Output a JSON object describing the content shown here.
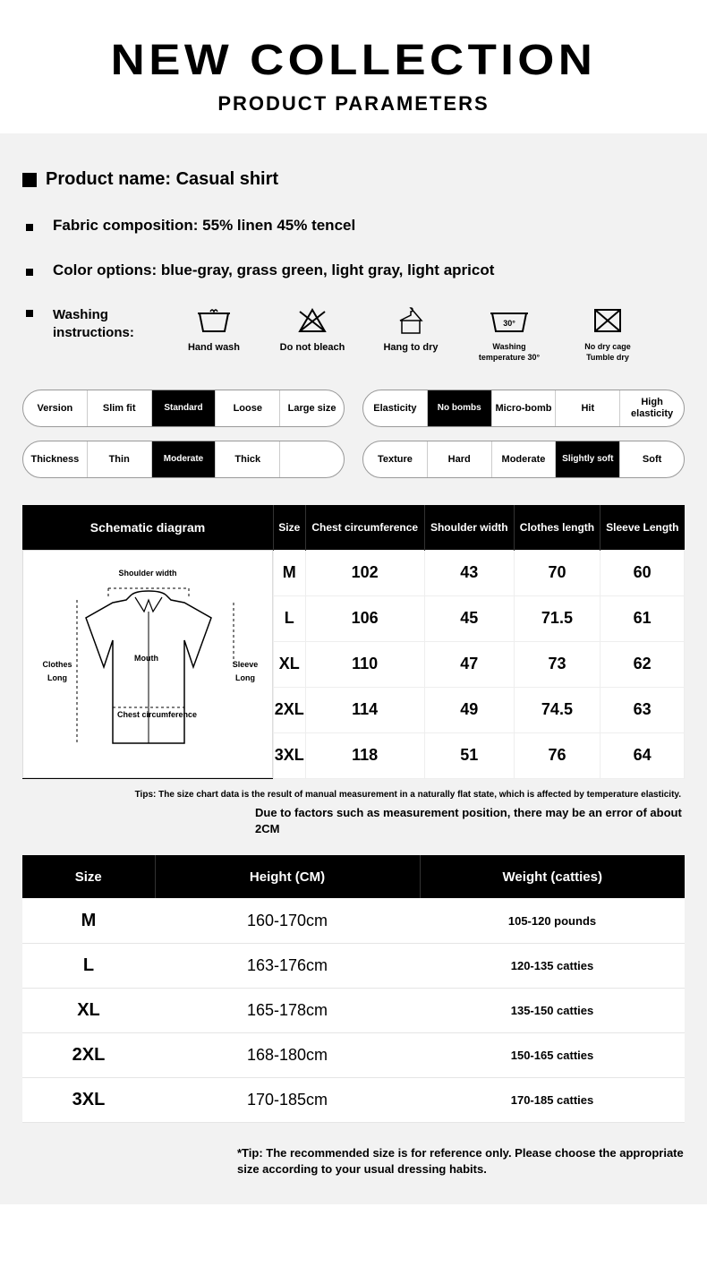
{
  "header": {
    "title": "NEW COLLECTION",
    "subtitle": "PRODUCT PARAMETERS"
  },
  "product": {
    "name_label": "Product name: Casual shirt",
    "fabric": "Fabric composition: 55% linen 45% tencel",
    "colors": "Color options: blue-gray, grass green, light gray, light apricot",
    "wash_label": "Washing instructions:"
  },
  "wash": [
    {
      "label": "Hand wash"
    },
    {
      "label": "Do not bleach"
    },
    {
      "label": "Hang to dry"
    },
    {
      "label": "Washing temperature 30°"
    },
    {
      "label": "No dry cage Tumble dry"
    }
  ],
  "selectors": {
    "row1_left": {
      "label": "Version",
      "options": [
        "Slim fit",
        "Standard",
        "Loose",
        "Large size"
      ],
      "active": 1
    },
    "row1_right": {
      "label": "Elasticity",
      "options": [
        "No bombs",
        "Micro-bomb",
        "Hit",
        "High elasticity"
      ],
      "active": 0
    },
    "row2_left": {
      "label": "Thickness",
      "options": [
        "Thin",
        "Moderate",
        "Thick",
        ""
      ],
      "active": 1
    },
    "row2_right": {
      "label": "Texture",
      "options": [
        "Hard",
        "Moderate",
        "Slightly soft",
        "Soft"
      ],
      "active": 2
    }
  },
  "schematic": {
    "title": "Schematic diagram",
    "labels": {
      "shoulder": "Shoulder width",
      "mouth": "Mouth",
      "chest": "Chest circumference",
      "clothes_long": "Clothes Long",
      "sleeve_long": "Sleeve Long"
    }
  },
  "size_table": {
    "headers": [
      "Size",
      "Chest circumference",
      "Shoulder width",
      "Clothes length",
      "Sleeve Length"
    ],
    "rows": [
      [
        "M",
        "102",
        "43",
        "70",
        "60"
      ],
      [
        "L",
        "106",
        "45",
        "71.5",
        "61"
      ],
      [
        "XL",
        "110",
        "47",
        "73",
        "62"
      ],
      [
        "2XL",
        "114",
        "49",
        "74.5",
        "63"
      ],
      [
        "3XL",
        "118",
        "51",
        "76",
        "64"
      ]
    ]
  },
  "tips": {
    "t1": "Tips: The size chart data is the result of manual measurement in a naturally flat state, which is affected by temperature elasticity.",
    "t2": "Due to factors such as measurement position, there may be an error of about 2CM",
    "t3": "*Tip: The recommended size is for reference only. Please choose the appropriate size according to your usual dressing habits."
  },
  "rec_table": {
    "headers": [
      "Size",
      "Height (CM)",
      "Weight (catties)"
    ],
    "rows": [
      [
        "M",
        "160-170cm",
        "105-120 pounds"
      ],
      [
        "L",
        "163-176cm",
        "120-135 catties"
      ],
      [
        "XL",
        "165-178cm",
        "135-150 catties"
      ],
      [
        "2XL",
        "168-180cm",
        "150-165 catties"
      ],
      [
        "3XL",
        "170-185cm",
        "170-185 catties"
      ]
    ]
  },
  "colors": {
    "bg": "#f2f2f2",
    "black": "#000000",
    "white": "#ffffff",
    "border": "#cccccc"
  }
}
